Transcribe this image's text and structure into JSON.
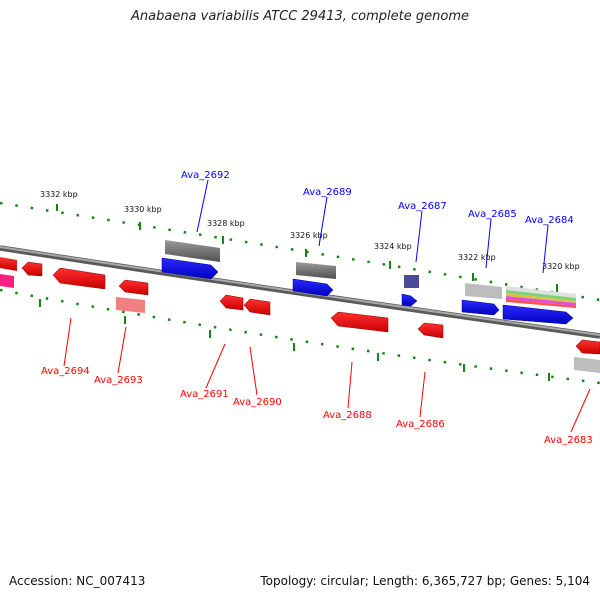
{
  "title": "Anabaena variabilis ATCC 29413, complete genome",
  "footer": {
    "accession": "Accession: NC_007413",
    "topology": "Topology: circular; Length: 6,365,727 bp; Genes: 5,104"
  },
  "colors": {
    "forward": "#0000ff",
    "reverse": "#ff0000",
    "backbone": "#808080",
    "tick": "#118811",
    "rna_reverse": "#ff8080"
  },
  "ticks": [
    {
      "label": "3332 kbp"
    },
    {
      "label": "3330 kbp"
    },
    {
      "label": "3328 kbp"
    },
    {
      "label": "3326 kbp"
    },
    {
      "label": "3324 kbp"
    },
    {
      "label": "3322 kbp"
    },
    {
      "label": "3320 kbp"
    }
  ],
  "forward_labels": [
    {
      "label": "Ava_2692"
    },
    {
      "label": "Ava_2689"
    },
    {
      "label": "Ava_2687"
    },
    {
      "label": "Ava_2685"
    },
    {
      "label": "Ava_2684"
    }
  ],
  "reverse_labels": [
    {
      "label": "Ava_2694"
    },
    {
      "label": "Ava_2693"
    },
    {
      "label": "Ava_2691"
    },
    {
      "label": "Ava_2690"
    },
    {
      "label": "Ava_2688"
    },
    {
      "label": "Ava_2686"
    },
    {
      "label": "Ava_2683"
    }
  ]
}
